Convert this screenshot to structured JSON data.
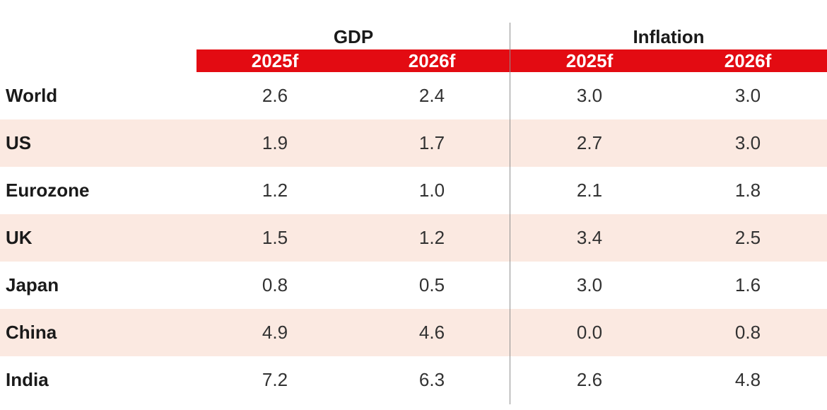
{
  "header": {
    "groups": [
      {
        "label": "GDP"
      },
      {
        "label": "Inflation"
      }
    ],
    "subcolumns": [
      "2025f",
      "2026f",
      "2025f",
      "2026f"
    ]
  },
  "table": {
    "rows": [
      {
        "label": "World",
        "values": [
          "2.6",
          "2.4",
          "3.0",
          "3.0"
        ]
      },
      {
        "label": "US",
        "values": [
          "1.9",
          "1.7",
          "2.7",
          "3.0"
        ]
      },
      {
        "label": "Eurozone",
        "values": [
          "1.2",
          "1.0",
          "2.1",
          "1.8"
        ]
      },
      {
        "label": "UK",
        "values": [
          "1.5",
          "1.2",
          "3.4",
          "2.5"
        ]
      },
      {
        "label": "Japan",
        "values": [
          "0.8",
          "0.5",
          "3.0",
          "1.6"
        ]
      },
      {
        "label": "China",
        "values": [
          "4.9",
          "4.6",
          "0.0",
          "0.8"
        ]
      },
      {
        "label": "India",
        "values": [
          "7.2",
          "6.3",
          "2.6",
          "4.8"
        ]
      }
    ]
  },
  "colors": {
    "accent_red": "#e30b12",
    "row_pink": "#fbe9e1",
    "divider_gray": "#8f8f8f"
  },
  "chart_data": {
    "type": "table",
    "title": "",
    "column_groups": [
      "GDP",
      "Inflation"
    ],
    "columns": [
      "GDP 2025f",
      "GDP 2026f",
      "Inflation 2025f",
      "Inflation 2026f"
    ],
    "rows": [
      "World",
      "US",
      "Eurozone",
      "UK",
      "Japan",
      "China",
      "India"
    ],
    "values": [
      [
        2.6,
        2.4,
        3.0,
        3.0
      ],
      [
        1.9,
        1.7,
        2.7,
        3.0
      ],
      [
        1.2,
        1.0,
        2.1,
        1.8
      ],
      [
        1.5,
        1.2,
        3.4,
        2.5
      ],
      [
        0.8,
        0.5,
        3.0,
        1.6
      ],
      [
        4.9,
        4.6,
        0.0,
        0.8
      ],
      [
        7.2,
        6.3,
        2.6,
        4.8
      ]
    ],
    "layout_hints": {
      "alternating_row_shading": [
        "white",
        "pink"
      ],
      "vertical_divider_between_groups": true,
      "subheader_style": "white-on-red"
    }
  }
}
